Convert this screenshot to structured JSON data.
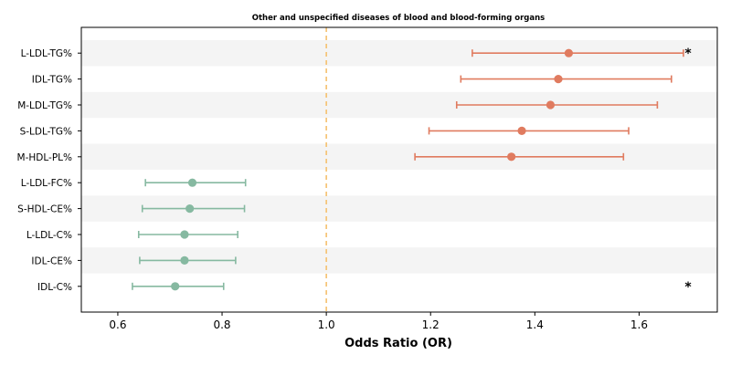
{
  "chart_data": {
    "type": "forest",
    "title": "Other and unspecified diseases of blood and blood-forming organs",
    "xlabel": "Odds Ratio (OR)",
    "xlim": [
      0.53,
      1.75
    ],
    "xticks": [
      0.6,
      0.8,
      1.0,
      1.2,
      1.4,
      1.6
    ],
    "xtick_labels": [
      "0.6",
      "0.8",
      "1.0",
      "1.2",
      "1.4",
      "1.6"
    ],
    "reference_line": 1.0,
    "colors": {
      "positive": "#E07B5F",
      "negative": "#86B9A1",
      "reference": "#F5C06F",
      "band": "#F4F4F4"
    },
    "rows": [
      {
        "label": "L-LDL-TG%",
        "or": 1.465,
        "lower": 1.28,
        "upper": 1.685,
        "significance": "*"
      },
      {
        "label": "IDL-TG%",
        "or": 1.445,
        "lower": 1.258,
        "upper": 1.662,
        "significance": ""
      },
      {
        "label": "M-LDL-TG%",
        "or": 1.43,
        "lower": 1.25,
        "upper": 1.635,
        "significance": ""
      },
      {
        "label": "S-LDL-TG%",
        "or": 1.375,
        "lower": 1.197,
        "upper": 1.58,
        "significance": ""
      },
      {
        "label": "M-HDL-PL%",
        "or": 1.355,
        "lower": 1.17,
        "upper": 1.57,
        "significance": ""
      },
      {
        "label": "L-LDL-FC%",
        "or": 0.743,
        "lower": 0.653,
        "upper": 0.845,
        "significance": ""
      },
      {
        "label": "S-HDL-CE%",
        "or": 0.738,
        "lower": 0.647,
        "upper": 0.843,
        "significance": ""
      },
      {
        "label": "L-LDL-C%",
        "or": 0.728,
        "lower": 0.64,
        "upper": 0.83,
        "significance": ""
      },
      {
        "label": "IDL-CE%",
        "or": 0.728,
        "lower": 0.642,
        "upper": 0.826,
        "significance": ""
      },
      {
        "label": "IDL-C%",
        "or": 0.71,
        "lower": 0.628,
        "upper": 0.803,
        "significance": "*"
      }
    ]
  }
}
